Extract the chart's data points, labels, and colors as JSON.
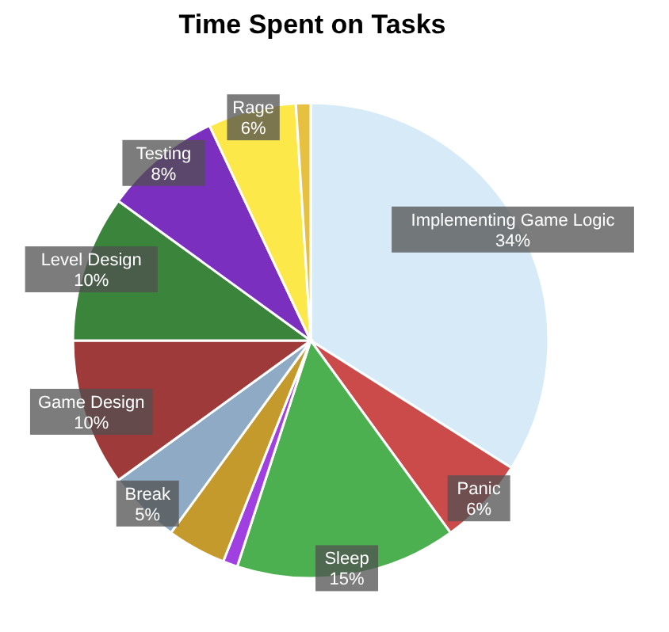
{
  "chart_data": {
    "type": "pie",
    "title": "Time Spent on Tasks",
    "categories": [
      "Implementing Game Logic",
      "Panic",
      "Sleep",
      null,
      null,
      "Break",
      "Game Design",
      "Level Design",
      "Testing",
      "Rage",
      null
    ],
    "values": [
      34,
      6,
      15,
      1,
      4,
      5,
      10,
      10,
      8,
      6,
      1
    ],
    "value_labels": [
      "34%",
      "6%",
      "15%",
      null,
      null,
      "5%",
      "10%",
      "10%",
      "8%",
      "6%",
      null
    ],
    "colors": [
      "#d6eaf8",
      "#cb4b4b",
      "#4caf50",
      "#a040e0",
      "#c49a2c",
      "#8eaac4",
      "#9e3a3a",
      "#3b843b",
      "#7b2fbe",
      "#fde84a",
      "#e8c040"
    ]
  }
}
